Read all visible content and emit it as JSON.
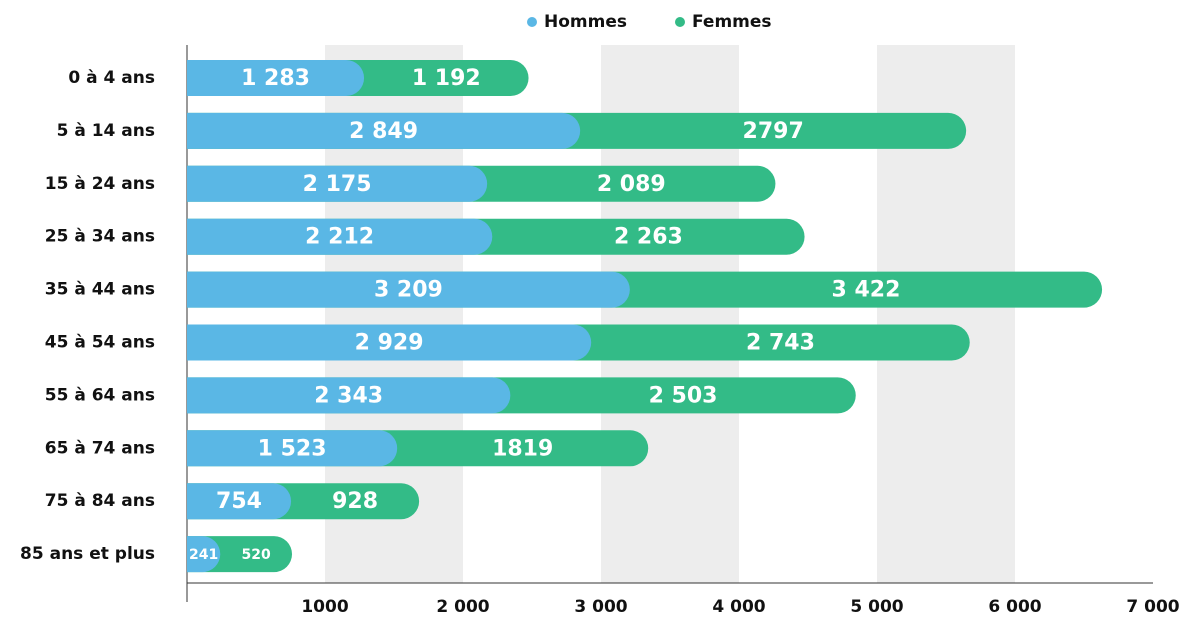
{
  "chart_data": {
    "type": "stacked_barh",
    "categories": [
      "0 à 4 ans",
      "5 à 14 ans",
      "15 à 24 ans",
      "25 à 34 ans",
      "35 à 44 ans",
      "45 à 54 ans",
      "55 à 64 ans",
      "65 à 74 ans",
      "75 à 84 ans",
      "85 ans et plus"
    ],
    "series": [
      {
        "name": "Hommes",
        "color": "#5ab7e5",
        "values": [
          1283,
          2849,
          2175,
          2212,
          3209,
          2929,
          2343,
          1523,
          754,
          241
        ],
        "value_labels": [
          "1 283",
          "2 849",
          "2 175",
          "2 212",
          "3 209",
          "2 929",
          "2 343",
          "1 523",
          "754",
          "241"
        ]
      },
      {
        "name": "Femmes",
        "color": "#33bb87",
        "values": [
          1192,
          2797,
          2089,
          2263,
          3422,
          2743,
          2503,
          1819,
          928,
          520
        ],
        "value_labels": [
          "1 192",
          "2797",
          "2 089",
          "2 263",
          "3 422",
          "2 743",
          "2 503",
          "1819",
          "928",
          "520"
        ]
      }
    ],
    "xlim": [
      0,
      7000
    ],
    "xticks": [
      1000,
      {
        "value": 2000,
        "label": "2 000"
      },
      {
        "value": 3000,
        "label": "3 000"
      },
      {
        "value": 4000,
        "label": "4 000"
      },
      {
        "value": 5000,
        "label": "5 000"
      },
      {
        "value": 6000,
        "label": "6 000"
      },
      {
        "value": 7000,
        "label": "7 000"
      }
    ],
    "legend": "top"
  }
}
